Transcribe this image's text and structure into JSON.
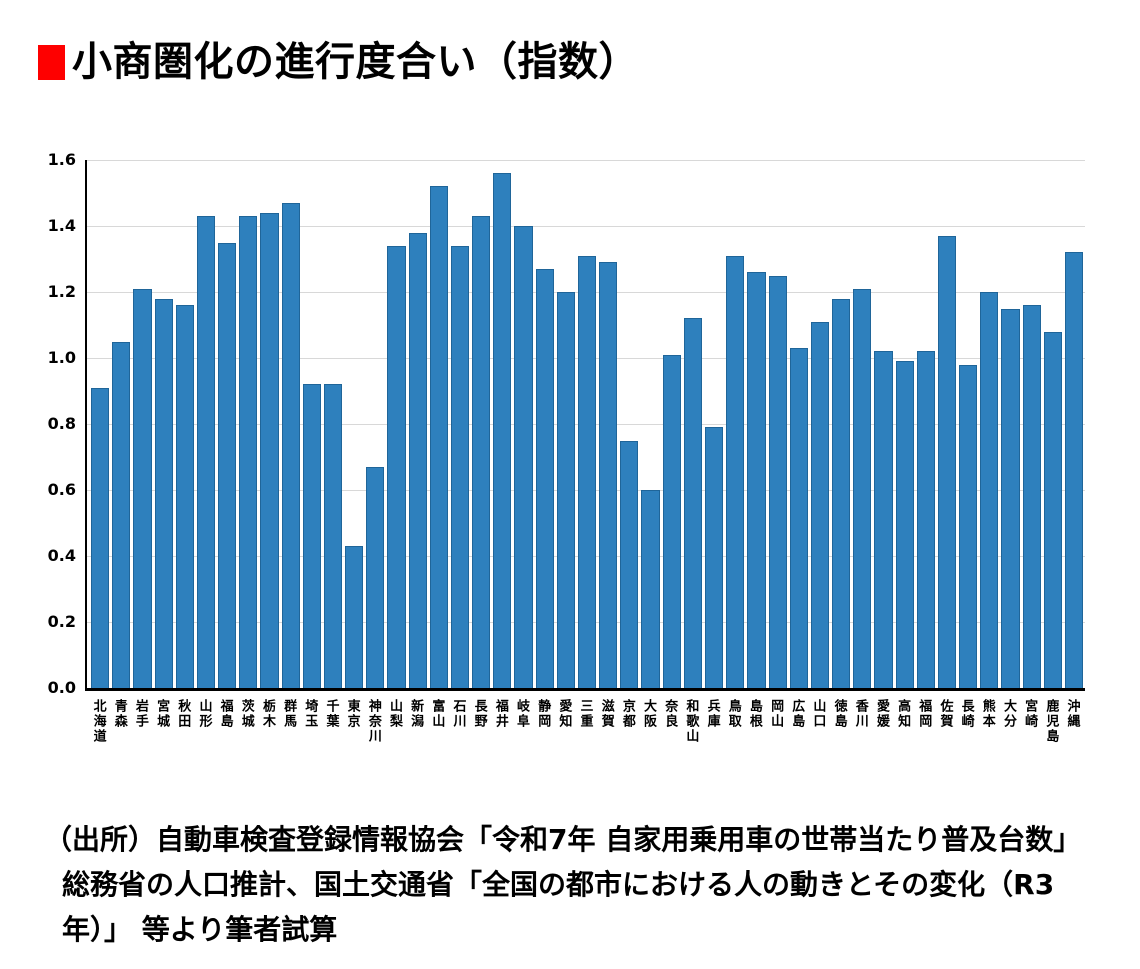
{
  "title": {
    "text": "小商圏化の進行度合い（指数）",
    "bullet_color": "#fe0000"
  },
  "chart_data": {
    "type": "bar",
    "title": "小商圏化の進行度合い（指数）",
    "xlabel": "",
    "ylabel": "",
    "ylim": [
      0,
      1.6
    ],
    "grid": true,
    "legend": false,
    "bar_color": "#2e80bd",
    "bar_edge_color": "#1f6599",
    "yticks": [
      "0.0",
      "0.2",
      "0.4",
      "0.6",
      "0.8",
      "1.0",
      "1.2",
      "1.4",
      "1.6"
    ],
    "categories": [
      "北海道",
      "青森",
      "岩手",
      "宮城",
      "秋田",
      "山形",
      "福島",
      "茨城",
      "栃木",
      "群馬",
      "埼玉",
      "千葉",
      "東京",
      "神奈川",
      "山梨",
      "新潟",
      "富山",
      "石川",
      "長野",
      "福井",
      "岐阜",
      "静岡",
      "愛知",
      "三重",
      "滋賀",
      "京都",
      "大阪",
      "奈良",
      "和歌山",
      "兵庫",
      "鳥取",
      "島根",
      "岡山",
      "広島",
      "山口",
      "徳島",
      "香川",
      "愛媛",
      "高知",
      "福岡",
      "佐賀",
      "長崎",
      "熊本",
      "大分",
      "宮崎",
      "鹿児島",
      "沖縄"
    ],
    "values": [
      0.91,
      1.05,
      1.21,
      1.18,
      1.16,
      1.43,
      1.35,
      1.43,
      1.44,
      1.47,
      0.92,
      0.92,
      0.43,
      0.67,
      1.34,
      1.38,
      1.52,
      1.34,
      1.43,
      1.56,
      1.4,
      1.27,
      1.2,
      1.31,
      1.29,
      0.75,
      0.6,
      1.01,
      1.12,
      0.79,
      1.31,
      1.26,
      1.25,
      1.03,
      1.11,
      1.18,
      1.21,
      1.02,
      0.99,
      1.02,
      1.37,
      0.98,
      1.2,
      1.15,
      1.16,
      1.08,
      1.32
    ]
  },
  "source": {
    "lines": [
      "（出所）自動車検査登録情報協会「令和7年 自家用乗用車の世帯当たり普及台数」",
      "総務省の人口推計、国土交通省「全国の都市における人の動きとその変化（R3",
      "年）」 等より筆者試算"
    ]
  }
}
